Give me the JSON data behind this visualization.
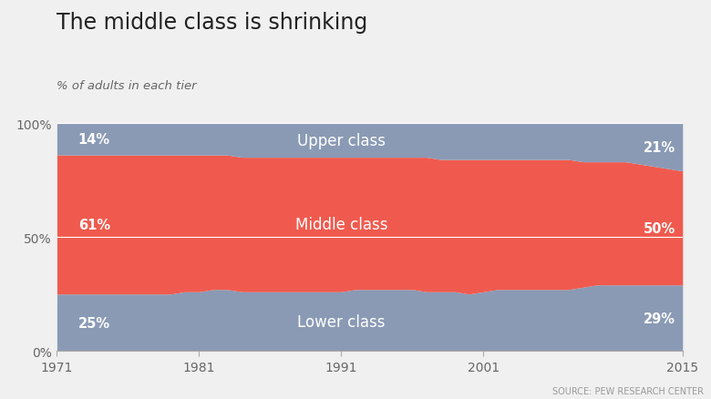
{
  "title": "The middle class is shrinking",
  "subtitle": "% of adults in each tier",
  "source": "SOURCE: PEW RESEARCH CENTER",
  "background_color": "#f0f0f0",
  "plot_background": "#f0f0f0",
  "gray_color": "#8a9ab5",
  "red_color": "#f05a4e",
  "years": [
    1971,
    1972,
    1973,
    1974,
    1975,
    1976,
    1977,
    1978,
    1979,
    1980,
    1981,
    1982,
    1983,
    1984,
    1985,
    1986,
    1987,
    1988,
    1989,
    1990,
    1991,
    1992,
    1993,
    1994,
    1995,
    1996,
    1997,
    1998,
    1999,
    2000,
    2001,
    2002,
    2003,
    2004,
    2005,
    2006,
    2007,
    2008,
    2009,
    2010,
    2011,
    2012,
    2013,
    2014,
    2015
  ],
  "lower": [
    25,
    25,
    25,
    25,
    25,
    25,
    25,
    25,
    25,
    26,
    26,
    27,
    27,
    26,
    26,
    26,
    26,
    26,
    26,
    26,
    26,
    27,
    27,
    27,
    27,
    27,
    26,
    26,
    26,
    25,
    26,
    27,
    27,
    27,
    27,
    27,
    27,
    28,
    29,
    29,
    29,
    29,
    29,
    29,
    29
  ],
  "middle": [
    61,
    61,
    61,
    61,
    61,
    61,
    61,
    61,
    61,
    60,
    60,
    59,
    59,
    59,
    59,
    59,
    59,
    59,
    59,
    59,
    59,
    58,
    58,
    58,
    58,
    58,
    59,
    58,
    58,
    59,
    58,
    57,
    57,
    57,
    57,
    57,
    57,
    55,
    54,
    54,
    54,
    53,
    52,
    51,
    50
  ],
  "upper": [
    14,
    14,
    14,
    14,
    14,
    14,
    14,
    14,
    14,
    14,
    14,
    14,
    14,
    15,
    15,
    15,
    15,
    15,
    15,
    15,
    15,
    15,
    15,
    15,
    15,
    15,
    15,
    16,
    16,
    16,
    16,
    16,
    16,
    16,
    16,
    16,
    16,
    17,
    17,
    17,
    17,
    18,
    19,
    20,
    21
  ],
  "annotations": {
    "lower_left": "25%",
    "lower_right": "29%",
    "lower_label": "Lower class",
    "middle_left": "61%",
    "middle_right": "50%",
    "middle_label": "Middle class",
    "upper_left": "14%",
    "upper_right": "21%",
    "upper_label": "Upper class"
  },
  "xlim": [
    1971,
    2015
  ],
  "ylim": [
    0,
    100
  ],
  "xticks": [
    1971,
    1981,
    1991,
    2001,
    2015
  ],
  "yticks": [
    0,
    50,
    100
  ],
  "ytick_labels": [
    "0%",
    "50%",
    "100%"
  ]
}
